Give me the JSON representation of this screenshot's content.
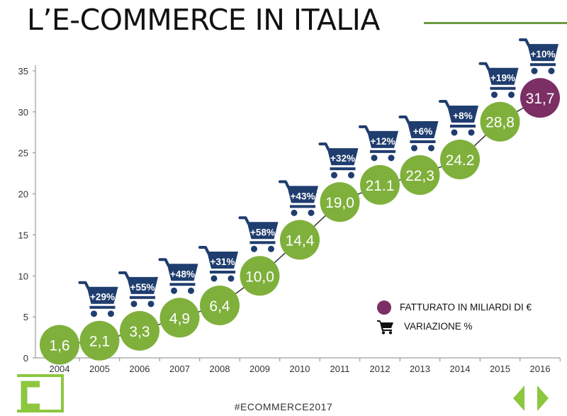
{
  "header": {
    "title": "L’E-COMMERCE IN ITALIA"
  },
  "colors": {
    "green": "#7fb03c",
    "purple": "#7b2f64",
    "navy": "#1f3d6e",
    "line": "#333333",
    "axis": "#888888",
    "rule": "#6c9a43",
    "logo": "#8dc63f",
    "arrows": "#8dc63f"
  },
  "chart_data": {
    "type": "line",
    "categories": [
      "2004",
      "2005",
      "2006",
      "2007",
      "2008",
      "2009",
      "2010",
      "2011",
      "2012",
      "2013",
      "2014",
      "2015",
      "2016"
    ],
    "series": [
      {
        "name": "FATTURATO IN MILIARDI DI €",
        "values": [
          1.6,
          2.1,
          3.3,
          4.9,
          6.4,
          10.0,
          14.4,
          19.0,
          21.1,
          22.3,
          24.2,
          28.8,
          31.7
        ],
        "labels": [
          "1,6",
          "2,1",
          "3,3",
          "4,9",
          "6,4",
          "10,0",
          "14,4",
          "19,0",
          "21.1",
          "22,3",
          "24.2",
          "28,8",
          "31,7"
        ]
      }
    ],
    "variazione": {
      "name": "VARIAZIONE %",
      "categories": [
        "2005",
        "2006",
        "2007",
        "2008",
        "2009",
        "2010",
        "2011",
        "2012",
        "2013",
        "2014",
        "2015",
        "2016"
      ],
      "labels": [
        "+29%",
        "+55%",
        "+48%",
        "+31%",
        "+58%",
        "+43%",
        "+32%",
        "+12%",
        "+6%",
        "+8%",
        "+19%",
        "+10%"
      ]
    },
    "ylim": [
      0,
      35
    ],
    "yticks": [
      0,
      5,
      10,
      15,
      20,
      25,
      30,
      35
    ],
    "legend_position": "bottom-right",
    "grid": false
  },
  "legend": {
    "items": [
      {
        "label": "FATTURATO IN MILIARDI DI €",
        "marker": "circle"
      },
      {
        "label": "VARIAZIONE %",
        "marker": "cart-icon"
      }
    ]
  },
  "footer": {
    "hashtag": "#ECOMMERCE2017",
    "logo_icon": "c-logo-icon",
    "prev_icon": "chevron-left-icon",
    "next_icon": "chevron-right-icon"
  }
}
